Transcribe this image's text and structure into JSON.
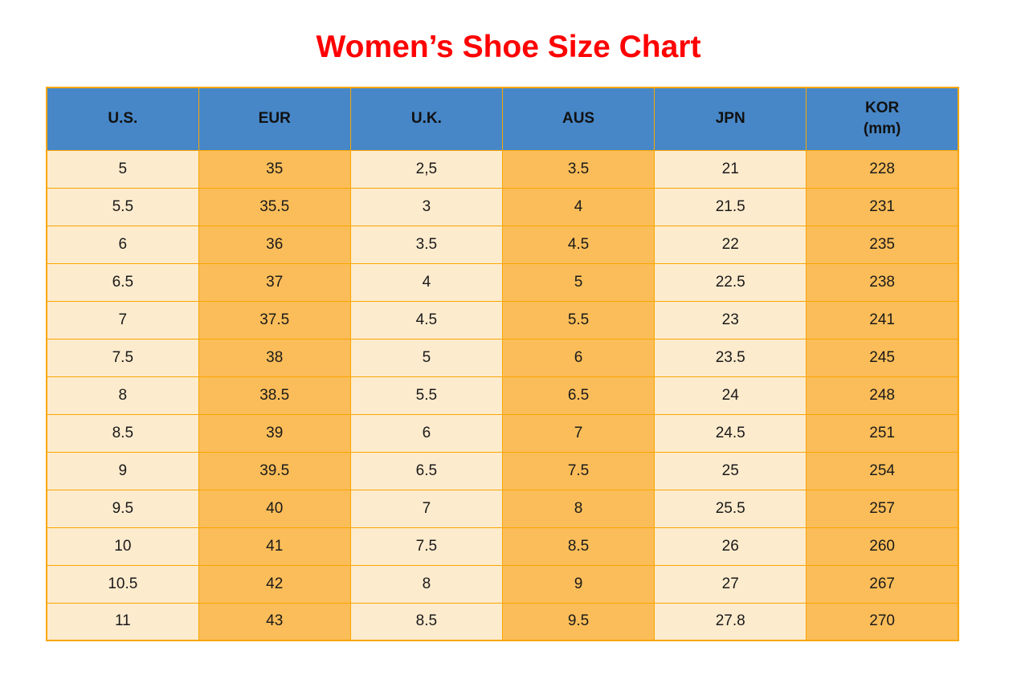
{
  "title": "Women’s Shoe Size Chart",
  "colors": {
    "page_bg": "#FFFFFF",
    "title_color": "#FF0000",
    "header_bg": "#4787C7",
    "header_text": "#111111",
    "col_light": "#FDEBCD",
    "col_orange": "#FBBD59",
    "border_color": "#F9A602",
    "cell_text": "#1A1A1A"
  },
  "table": {
    "columns": [
      {
        "id": "us",
        "label": "U.S."
      },
      {
        "id": "eur",
        "label": "EUR"
      },
      {
        "id": "uk",
        "label": "U.K."
      },
      {
        "id": "aus",
        "label": "AUS"
      },
      {
        "id": "jpn",
        "label": "JPN"
      },
      {
        "id": "kor",
        "label": "KOR",
        "sub": "(mm)"
      }
    ]
  },
  "chart_data": {
    "type": "table",
    "title": "Women’s Shoe Size Chart",
    "columns": [
      "U.S.",
      "EUR",
      "U.K.",
      "AUS",
      "JPN",
      "KOR (mm)"
    ],
    "rows": [
      [
        "5",
        "35",
        "2,5",
        "3.5",
        "21",
        "228"
      ],
      [
        "5.5",
        "35.5",
        "3",
        "4",
        "21.5",
        "231"
      ],
      [
        "6",
        "36",
        "3.5",
        "4.5",
        "22",
        "235"
      ],
      [
        "6.5",
        "37",
        "4",
        "5",
        "22.5",
        "238"
      ],
      [
        "7",
        "37.5",
        "4.5",
        "5.5",
        "23",
        "241"
      ],
      [
        "7.5",
        "38",
        "5",
        "6",
        "23.5",
        "245"
      ],
      [
        "8",
        "38.5",
        "5.5",
        "6.5",
        "24",
        "248"
      ],
      [
        "8.5",
        "39",
        "6",
        "7",
        "24.5",
        "251"
      ],
      [
        "9",
        "39.5",
        "6.5",
        "7.5",
        "25",
        "254"
      ],
      [
        "9.5",
        "40",
        "7",
        "8",
        "25.5",
        "257"
      ],
      [
        "10",
        "41",
        "7.5",
        "8.5",
        "26",
        "260"
      ],
      [
        "10.5",
        "42",
        "8",
        "9",
        "27",
        "267"
      ],
      [
        "11",
        "43",
        "8.5",
        "9.5",
        "27.8",
        "270"
      ]
    ]
  }
}
